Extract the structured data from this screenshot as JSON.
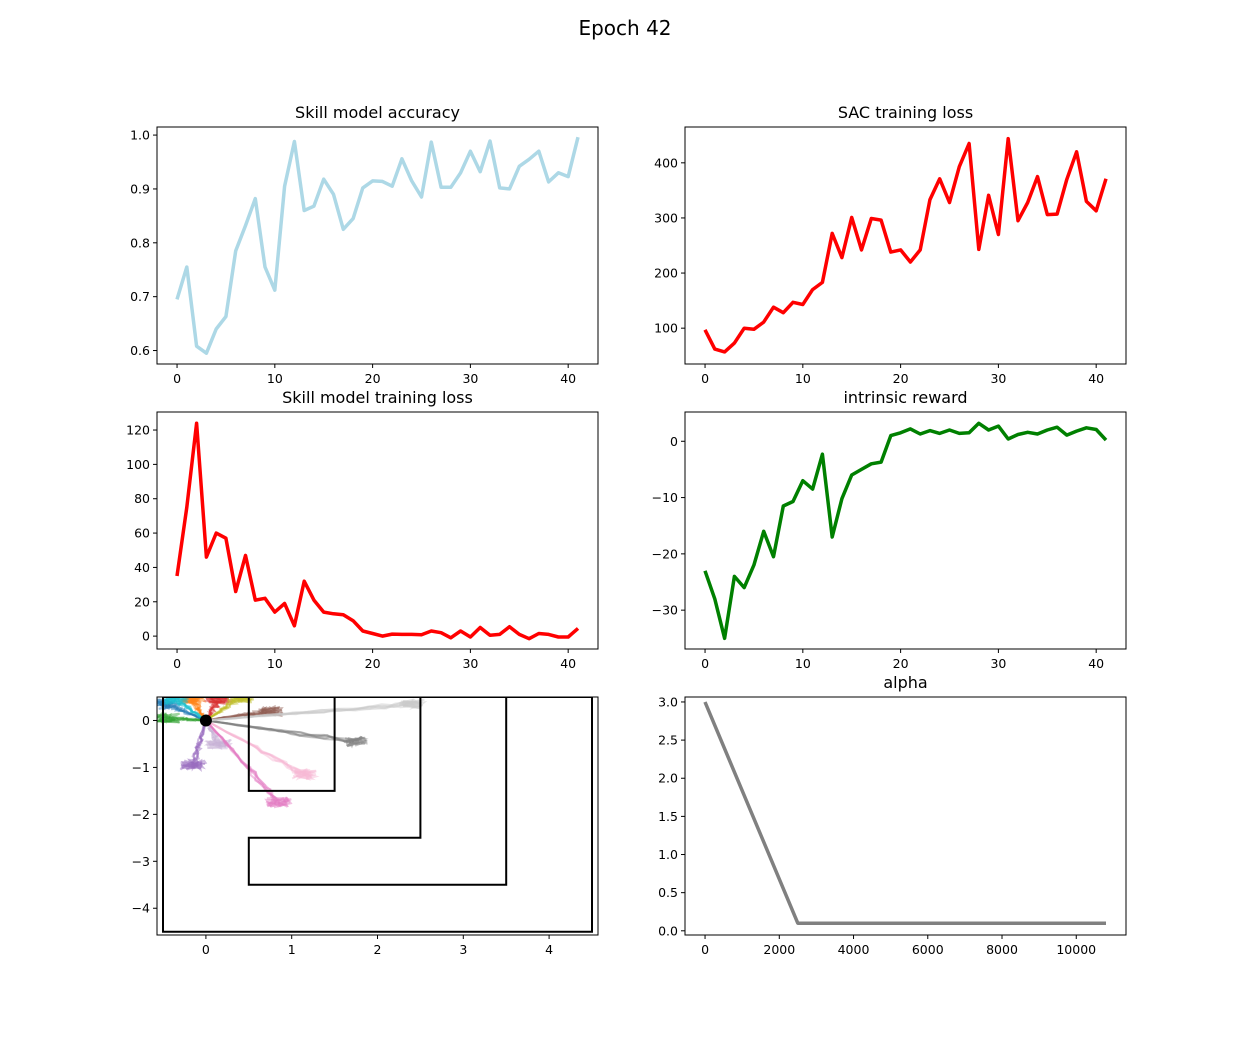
{
  "figure": {
    "title": "Epoch 42"
  },
  "chart_data": [
    {
      "type": "line",
      "title": "Skill model accuracy",
      "color": "#add8e6",
      "xlim": [
        -2.05,
        43.05
      ],
      "ylim": [
        0.575,
        1.015
      ],
      "xticks": [
        0,
        10,
        20,
        30,
        40
      ],
      "yticks": [
        0.6,
        0.7,
        0.8,
        0.9,
        1.0
      ],
      "ytick_labels": [
        "0.6",
        "0.7",
        "0.8",
        "0.9",
        "1.0"
      ],
      "x": [
        0,
        1,
        2,
        3,
        4,
        5,
        6,
        7,
        8,
        9,
        10,
        11,
        12,
        13,
        14,
        15,
        16,
        17,
        18,
        19,
        20,
        21,
        22,
        23,
        24,
        25,
        26,
        27,
        28,
        29,
        30,
        31,
        32,
        33,
        34,
        35,
        36,
        37,
        38,
        39,
        40,
        41
      ],
      "y": [
        0.695,
        0.755,
        0.608,
        0.595,
        0.64,
        0.663,
        0.785,
        0.832,
        0.882,
        0.755,
        0.712,
        0.905,
        0.988,
        0.86,
        0.868,
        0.918,
        0.89,
        0.825,
        0.845,
        0.902,
        0.915,
        0.914,
        0.905,
        0.956,
        0.915,
        0.885,
        0.987,
        0.903,
        0.903,
        0.93,
        0.97,
        0.932,
        0.989,
        0.902,
        0.9,
        0.942,
        0.955,
        0.97,
        0.913,
        0.93,
        0.923,
        0.996
      ]
    },
    {
      "type": "line",
      "title": "SAC training loss",
      "color": "#ff0000",
      "xlim": [
        -2.05,
        43.05
      ],
      "ylim": [
        35,
        465
      ],
      "xticks": [
        0,
        10,
        20,
        30,
        40
      ],
      "yticks": [
        100,
        200,
        300,
        400
      ],
      "ytick_labels": [
        "100",
        "200",
        "300",
        "400"
      ],
      "x": [
        0,
        1,
        2,
        3,
        4,
        5,
        6,
        7,
        8,
        9,
        10,
        11,
        12,
        13,
        14,
        15,
        16,
        17,
        18,
        19,
        20,
        21,
        22,
        23,
        24,
        25,
        26,
        27,
        28,
        29,
        30,
        31,
        32,
        33,
        34,
        35,
        36,
        37,
        38,
        39,
        40,
        41
      ],
      "y": [
        97,
        62,
        57,
        73,
        100,
        98,
        111,
        138,
        128,
        147,
        143,
        170,
        183,
        272,
        228,
        301,
        242,
        299,
        296,
        238,
        242,
        220,
        242,
        333,
        371,
        328,
        393,
        435,
        243,
        341,
        270,
        444,
        295,
        328,
        375,
        306,
        307,
        370,
        420,
        330,
        313,
        371
      ]
    },
    {
      "type": "line",
      "title": "Skill model training loss",
      "color": "#ff0000",
      "xlim": [
        -2.05,
        43.05
      ],
      "ylim": [
        -7.5,
        130.5
      ],
      "xticks": [
        0,
        10,
        20,
        30,
        40
      ],
      "yticks": [
        0,
        20,
        40,
        60,
        80,
        100,
        120
      ],
      "ytick_labels": [
        "0",
        "20",
        "40",
        "60",
        "80",
        "100",
        "120"
      ],
      "x": [
        0,
        1,
        2,
        3,
        4,
        5,
        6,
        7,
        8,
        9,
        10,
        11,
        12,
        13,
        14,
        15,
        16,
        17,
        18,
        19,
        20,
        21,
        22,
        23,
        24,
        25,
        26,
        27,
        28,
        29,
        30,
        31,
        32,
        33,
        34,
        35,
        36,
        37,
        38,
        39,
        40,
        41
      ],
      "y": [
        35,
        75,
        124,
        46,
        60,
        57,
        26,
        47,
        21,
        22,
        14,
        19,
        6,
        32,
        21,
        14,
        13,
        12.5,
        9,
        3,
        1.5,
        0,
        1.2,
        1,
        1,
        0.8,
        3,
        2,
        -1,
        3,
        -0.5,
        5,
        0.5,
        1,
        5.5,
        1,
        -1.5,
        1.5,
        1,
        -0.5,
        -0.5,
        4.5
      ]
    },
    {
      "type": "line",
      "title": "intrinsic reward",
      "color": "#008000",
      "xlim": [
        -2.05,
        43.05
      ],
      "ylim": [
        -36.9,
        5.2
      ],
      "xticks": [
        0,
        10,
        20,
        30,
        40
      ],
      "yticks": [
        -30,
        -20,
        -10,
        0
      ],
      "ytick_labels": [
        "−30",
        "−20",
        "−10",
        "0"
      ],
      "x": [
        0,
        1,
        2,
        3,
        4,
        5,
        6,
        7,
        8,
        9,
        10,
        11,
        12,
        13,
        14,
        15,
        16,
        17,
        18,
        19,
        20,
        21,
        22,
        23,
        24,
        25,
        26,
        27,
        28,
        29,
        30,
        31,
        32,
        33,
        34,
        35,
        36,
        37,
        38,
        39,
        40,
        41
      ],
      "y": [
        -23,
        -28,
        -35,
        -24,
        -26,
        -22,
        -16,
        -20.5,
        -11.5,
        -10.7,
        -7,
        -8.5,
        -2.3,
        -17,
        -10.2,
        -6,
        -5,
        -4,
        -3.7,
        1,
        1.5,
        2.2,
        1.3,
        1.9,
        1.4,
        2,
        1.4,
        1.5,
        3.2,
        2,
        2.7,
        0.4,
        1.2,
        1.6,
        1.3,
        2,
        2.5,
        1.1,
        1.8,
        2.4,
        2.1,
        0.2
      ]
    },
    {
      "type": "scatter",
      "title": "",
      "xlim": [
        -0.57,
        4.57
      ],
      "ylim": [
        -4.57,
        0.5
      ],
      "xticks": [
        0,
        1,
        2,
        3,
        4
      ],
      "yticks": [
        0,
        -1,
        -2,
        -3,
        -4
      ],
      "ytick_labels": [
        "0",
        "−1",
        "−2",
        "−3",
        "−4"
      ],
      "start_point": [
        0,
        0
      ],
      "walls": [
        [
          [
            -0.5,
            0.5
          ],
          [
            4.5,
            0.5
          ],
          [
            4.5,
            -4.5
          ],
          [
            -0.5,
            -4.5
          ],
          [
            -0.5,
            0.5
          ]
        ],
        [
          [
            0.5,
            0.5
          ],
          [
            0.5,
            -1.5
          ],
          [
            1.5,
            -1.5
          ],
          [
            1.5,
            0.5
          ]
        ],
        [
          [
            1.5,
            0.5
          ],
          [
            2.5,
            0.5
          ],
          [
            2.5,
            -2.5
          ],
          [
            0.5,
            -2.5
          ],
          [
            0.5,
            -3.5
          ],
          [
            3.5,
            -3.5
          ],
          [
            3.5,
            0.5
          ]
        ]
      ],
      "skills": [
        {
          "color": "#1f77b4",
          "end": [
            -0.45,
            0.35
          ]
        },
        {
          "color": "#ff7f0e",
          "end": [
            -0.15,
            0.45
          ]
        },
        {
          "color": "#2ca02c",
          "end": [
            -0.45,
            0.05
          ]
        },
        {
          "color": "#d62728",
          "end": [
            0.15,
            0.45
          ]
        },
        {
          "color": "#9467bd",
          "end": [
            -0.15,
            -0.95
          ]
        },
        {
          "color": "#c5b0d5",
          "end": [
            0.15,
            -0.5
          ]
        },
        {
          "color": "#8c564b",
          "end": [
            0.75,
            0.2
          ]
        },
        {
          "color": "#e377c2",
          "end": [
            0.85,
            -1.75
          ]
        },
        {
          "color": "#f7b6d2",
          "end": [
            1.15,
            -1.15
          ]
        },
        {
          "color": "#7f7f7f",
          "end": [
            1.75,
            -0.45
          ]
        },
        {
          "color": "#c7c7c7",
          "end": [
            2.4,
            0.35
          ]
        },
        {
          "color": "#bcbd22",
          "end": [
            0.4,
            0.48
          ]
        },
        {
          "color": "#17becf",
          "end": [
            -0.35,
            0.45
          ]
        }
      ]
    },
    {
      "type": "line",
      "title": "alpha",
      "color": "#808080",
      "xlim": [
        -540,
        11340
      ],
      "ylim": [
        -0.055,
        3.065
      ],
      "xticks": [
        0,
        2000,
        4000,
        6000,
        8000,
        10000
      ],
      "yticks": [
        0.0,
        0.5,
        1.0,
        1.5,
        2.0,
        2.5,
        3.0
      ],
      "ytick_labels": [
        "0.0",
        "0.5",
        "1.0",
        "1.5",
        "2.0",
        "2.5",
        "3.0"
      ],
      "x": [
        0,
        2500,
        10800
      ],
      "y": [
        3.0,
        0.1,
        0.1
      ]
    }
  ]
}
